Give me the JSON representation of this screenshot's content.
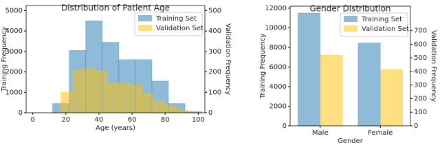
{
  "chart_data": [
    {
      "type": "histogram",
      "title": "Distribution of Patient Age",
      "xlabel": "Age (years)",
      "ylabel": "Training Frequency",
      "y2label": "Validation Frequency",
      "xlim": [
        -4,
        104
      ],
      "xticks": [
        0,
        20,
        40,
        60,
        80,
        100
      ],
      "ylim": [
        0,
        5250
      ],
      "yticks": [
        0,
        1000,
        2000,
        3000,
        4000,
        5000
      ],
      "y2lim": [
        0,
        525
      ],
      "y2ticks": [
        0,
        100,
        200,
        300,
        400,
        500
      ],
      "legend": "upper right",
      "series": [
        {
          "name": "Training Set",
          "color": "#1f77b4",
          "bins": [
            12,
            22,
            32,
            42,
            52,
            62,
            72,
            82,
            92,
            102
          ],
          "values": [
            450,
            3050,
            4500,
            3450,
            2600,
            2600,
            1550,
            450,
            50
          ]
        },
        {
          "name": "Validation Set",
          "color": "#ffbf00",
          "axis": "y2",
          "bins": [
            17,
            24,
            31,
            38,
            45,
            52,
            59,
            66,
            73,
            80,
            87,
            94
          ],
          "values": [
            100,
            210,
            215,
            205,
            145,
            145,
            135,
            95,
            55,
            35,
            12
          ]
        }
      ]
    },
    {
      "type": "bar",
      "title": "Gender Distribution",
      "xlabel": "Gender",
      "ylabel": "Training Frequency",
      "y2label": "Validation Frequency",
      "categories": [
        "Male",
        "Female"
      ],
      "ylim": [
        0,
        12200
      ],
      "yticks": [
        0,
        2000,
        4000,
        6000,
        8000,
        10000,
        12000
      ],
      "y2lim": [
        0,
        880
      ],
      "y2ticks": [
        0,
        100,
        200,
        300,
        400,
        500,
        600,
        700
      ],
      "legend": "upper right",
      "series": [
        {
          "name": "Training Set",
          "color": "#1f77b4",
          "values": [
            11500,
            8450
          ]
        },
        {
          "name": "Validation Set",
          "color": "#ffbf00",
          "axis": "y2",
          "values": [
            521,
            415
          ]
        }
      ]
    }
  ]
}
